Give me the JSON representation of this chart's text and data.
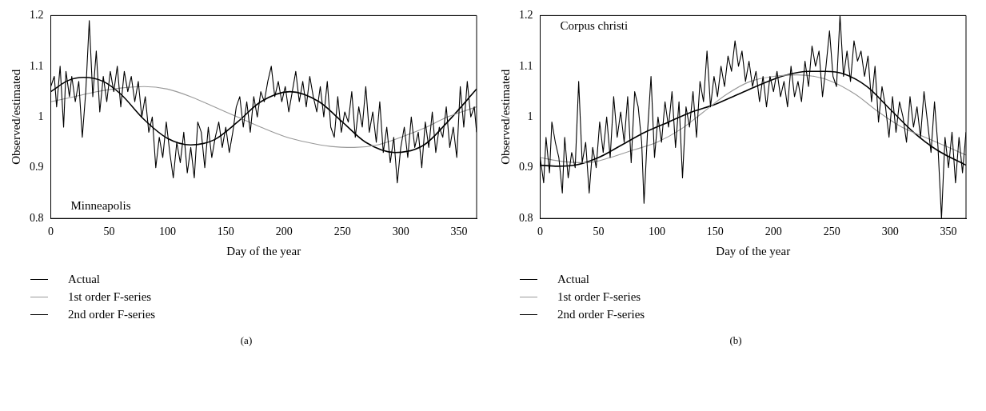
{
  "chart_data": [
    {
      "type": "line",
      "xlabel": "Day of the year",
      "ylabel": "Observed/estimated",
      "annotations": [
        "Minneapolis",
        "(a)"
      ],
      "xlim": [
        0,
        365
      ],
      "xticks": [
        0,
        50,
        100,
        150,
        200,
        250,
        300,
        350
      ],
      "ylim": [
        0.8,
        1.2
      ],
      "yticks": [
        0.8,
        0.9,
        1,
        1.1,
        1.2
      ],
      "grid": false,
      "legend": "bottom left",
      "marker": "none",
      "line_style": "solid",
      "series": [
        {
          "name": "Actual",
          "color": "#000000",
          "x": [
            0,
            3,
            5,
            8,
            11,
            13,
            16,
            18,
            21,
            24,
            27,
            30,
            33,
            36,
            39,
            42,
            45,
            48,
            51,
            54,
            57,
            60,
            63,
            66,
            69,
            72,
            75,
            78,
            81,
            84,
            87,
            90,
            93,
            96,
            99,
            102,
            105,
            108,
            111,
            114,
            117,
            120,
            123,
            126,
            129,
            132,
            135,
            138,
            141,
            144,
            147,
            150,
            153,
            156,
            159,
            162,
            165,
            168,
            171,
            174,
            177,
            180,
            183,
            186,
            189,
            192,
            195,
            198,
            201,
            204,
            207,
            210,
            213,
            216,
            219,
            222,
            225,
            228,
            231,
            234,
            237,
            240,
            243,
            246,
            249,
            252,
            255,
            258,
            261,
            264,
            267,
            270,
            273,
            276,
            279,
            282,
            285,
            288,
            291,
            294,
            297,
            300,
            303,
            306,
            309,
            312,
            315,
            318,
            321,
            324,
            327,
            330,
            333,
            336,
            339,
            342,
            345,
            348,
            351,
            354,
            357,
            360,
            363,
            365
          ],
          "values": [
            1.06,
            1.08,
            1.02,
            1.1,
            0.98,
            1.09,
            1.04,
            1.08,
            1.03,
            1.07,
            0.96,
            1.05,
            1.19,
            1.04,
            1.13,
            1.01,
            1.08,
            1.03,
            1.09,
            1.05,
            1.1,
            1.02,
            1.09,
            1.05,
            1.08,
            1.03,
            1.07,
            1.0,
            1.04,
            0.97,
            1.0,
            0.9,
            0.96,
            0.92,
            0.99,
            0.93,
            0.88,
            0.95,
            0.91,
            0.97,
            0.89,
            0.94,
            0.88,
            0.99,
            0.97,
            0.9,
            0.98,
            0.92,
            0.96,
            0.99,
            0.94,
            0.98,
            0.93,
            0.97,
            1.02,
            1.04,
            0.98,
            1.03,
            0.97,
            1.04,
            1.0,
            1.05,
            1.03,
            1.07,
            1.1,
            1.04,
            1.07,
            1.03,
            1.06,
            1.01,
            1.05,
            1.09,
            1.03,
            1.07,
            1.02,
            1.08,
            1.04,
            1.01,
            1.06,
            1.0,
            1.07,
            0.98,
            0.96,
            1.04,
            0.97,
            1.01,
            0.99,
            1.05,
            0.96,
            1.02,
            0.98,
            1.06,
            0.97,
            1.01,
            0.95,
            1.03,
            0.93,
            0.98,
            0.91,
            0.96,
            0.87,
            0.94,
            0.98,
            0.92,
            1.0,
            0.94,
            0.97,
            0.9,
            0.99,
            0.94,
            1.01,
            0.93,
            0.98,
            0.96,
            1.02,
            0.94,
            0.98,
            0.92,
            1.06,
            0.98,
            1.07,
            1.0,
            1.02,
            0.97
          ]
        },
        {
          "name": "1st order F-series",
          "color": "#999999",
          "x": [
            0,
            20,
            40,
            60,
            80,
            100,
            120,
            140,
            160,
            180,
            200,
            220,
            240,
            260,
            280,
            300,
            320,
            340,
            365
          ],
          "values": [
            1.03,
            1.04,
            1.05,
            1.057,
            1.06,
            1.055,
            1.04,
            1.02,
            1.0,
            0.98,
            0.962,
            0.95,
            0.942,
            0.94,
            0.945,
            0.96,
            0.978,
            1.0,
            1.02
          ]
        },
        {
          "name": "2nd order F-series",
          "color": "#000000",
          "x": [
            0,
            15,
            28,
            45,
            60,
            80,
            100,
            120,
            140,
            160,
            180,
            205,
            230,
            250,
            270,
            295,
            320,
            340,
            365
          ],
          "values": [
            1.05,
            1.072,
            1.078,
            1.07,
            1.045,
            0.995,
            0.958,
            0.945,
            0.955,
            0.99,
            1.03,
            1.05,
            1.03,
            0.99,
            0.95,
            0.93,
            0.945,
            0.99,
            1.055
          ]
        }
      ]
    },
    {
      "type": "line",
      "xlabel": "Day of the year",
      "ylabel": "Observed/estimated",
      "annotations": [
        "Corpus christi",
        "(b)"
      ],
      "xlim": [
        0,
        365
      ],
      "xticks": [
        0,
        50,
        100,
        150,
        200,
        250,
        300,
        350
      ],
      "ylim": [
        0.8,
        1.2
      ],
      "yticks": [
        0.8,
        0.9,
        1,
        1.1,
        1.2
      ],
      "grid": false,
      "legend": "bottom left",
      "marker": "none",
      "line_style": "solid",
      "series": [
        {
          "name": "Actual",
          "color": "#000000",
          "x": [
            0,
            3,
            5,
            8,
            10,
            13,
            16,
            19,
            21,
            24,
            27,
            30,
            33,
            36,
            39,
            42,
            45,
            48,
            51,
            54,
            57,
            60,
            63,
            66,
            69,
            72,
            75,
            78,
            81,
            84,
            87,
            89,
            92,
            95,
            98,
            101,
            104,
            107,
            110,
            113,
            116,
            119,
            122,
            125,
            128,
            131,
            134,
            137,
            140,
            143,
            146,
            149,
            152,
            155,
            158,
            161,
            164,
            167,
            170,
            173,
            176,
            179,
            182,
            185,
            188,
            191,
            194,
            197,
            200,
            203,
            206,
            209,
            212,
            215,
            218,
            221,
            224,
            227,
            230,
            233,
            236,
            239,
            242,
            245,
            248,
            251,
            254,
            257,
            260,
            263,
            266,
            269,
            272,
            275,
            278,
            281,
            284,
            287,
            290,
            293,
            296,
            299,
            302,
            305,
            308,
            311,
            314,
            317,
            320,
            323,
            326,
            329,
            332,
            335,
            338,
            341,
            344,
            347,
            350,
            353,
            356,
            359,
            362,
            365
          ],
          "values": [
            0.92,
            0.87,
            0.96,
            0.89,
            0.99,
            0.95,
            0.92,
            0.85,
            0.96,
            0.88,
            0.93,
            0.9,
            1.07,
            0.91,
            0.95,
            0.85,
            0.94,
            0.9,
            0.99,
            0.93,
            1.0,
            0.92,
            1.04,
            0.96,
            1.01,
            0.95,
            1.04,
            0.91,
            1.05,
            1.02,
            0.95,
            0.83,
            0.97,
            1.08,
            0.92,
            1.0,
            0.95,
            1.03,
            0.98,
            1.05,
            0.94,
            1.03,
            0.88,
            1.02,
            0.98,
            1.05,
            0.96,
            1.07,
            1.03,
            1.13,
            1.02,
            1.08,
            1.04,
            1.1,
            1.06,
            1.12,
            1.09,
            1.15,
            1.1,
            1.13,
            1.07,
            1.11,
            1.06,
            1.09,
            1.03,
            1.08,
            1.02,
            1.08,
            1.05,
            1.09,
            1.04,
            1.07,
            1.02,
            1.1,
            1.04,
            1.07,
            1.03,
            1.11,
            1.06,
            1.14,
            1.1,
            1.13,
            1.04,
            1.1,
            1.17,
            1.08,
            1.06,
            1.2,
            1.08,
            1.13,
            1.07,
            1.15,
            1.11,
            1.13,
            1.08,
            1.12,
            1.03,
            1.1,
            0.99,
            1.06,
            1.02,
            0.96,
            1.04,
            0.97,
            1.03,
            1.0,
            0.95,
            1.04,
            0.98,
            1.02,
            0.96,
            1.05,
            0.99,
            0.93,
            1.03,
            0.94,
            0.8,
            0.96,
            0.9,
            0.97,
            0.87,
            0.96,
            0.89,
            0.97
          ]
        },
        {
          "name": "1st order F-series",
          "color": "#999999",
          "x": [
            0,
            20,
            40,
            60,
            80,
            100,
            120,
            140,
            160,
            180,
            200,
            220,
            235,
            250,
            270,
            290,
            310,
            330,
            350,
            365
          ],
          "values": [
            0.92,
            0.912,
            0.91,
            0.92,
            0.935,
            0.95,
            0.975,
            1.01,
            1.045,
            1.07,
            1.08,
            1.083,
            1.08,
            1.07,
            1.045,
            1.01,
            0.98,
            0.96,
            0.94,
            0.925
          ]
        },
        {
          "name": "2nd order F-series",
          "color": "#000000",
          "x": [
            0,
            15,
            30,
            50,
            70,
            90,
            110,
            130,
            150,
            170,
            190,
            210,
            230,
            245,
            260,
            280,
            300,
            320,
            340,
            365
          ],
          "values": [
            0.905,
            0.903,
            0.905,
            0.92,
            0.945,
            0.97,
            0.99,
            1.01,
            1.025,
            1.045,
            1.065,
            1.082,
            1.09,
            1.09,
            1.085,
            1.06,
            1.015,
            0.97,
            0.935,
            0.905
          ]
        }
      ]
    }
  ]
}
